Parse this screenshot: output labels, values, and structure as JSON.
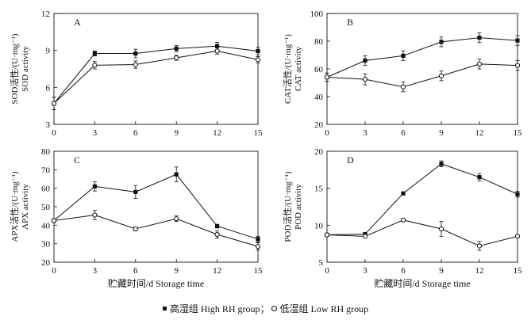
{
  "chart_data": [
    {
      "type": "line",
      "panel_label": "A",
      "ylabel_cn": "SOD活性/(U·mg⁻¹)",
      "ylabel_en": "SOD activity",
      "xlabel": "",
      "x": [
        0,
        3,
        6,
        9,
        12,
        15
      ],
      "xticks": [
        "0",
        "3",
        "6",
        "9",
        "12",
        "15"
      ],
      "ylim": [
        3,
        12
      ],
      "yticks": [
        "3",
        "6",
        "9",
        "12"
      ],
      "series": [
        {
          "name": "High RH group",
          "marker": "square",
          "values": [
            4.7,
            8.75,
            8.75,
            9.15,
            9.35,
            8.95
          ],
          "errors": [
            0.5,
            0.2,
            0.35,
            0.25,
            0.3,
            0.3
          ]
        },
        {
          "name": "Low RH group",
          "marker": "circle",
          "values": [
            4.7,
            7.8,
            7.85,
            8.4,
            8.95,
            8.25
          ],
          "errors": [
            0.5,
            0.3,
            0.3,
            0.2,
            0.25,
            0.25
          ]
        }
      ]
    },
    {
      "type": "line",
      "panel_label": "B",
      "ylabel_cn": "CAT活性/(U·mg⁻¹)",
      "ylabel_en": "CAT activity",
      "xlabel": "",
      "x": [
        0,
        3,
        6,
        9,
        12,
        15
      ],
      "xticks": [
        "0",
        "3",
        "6",
        "9",
        "12",
        "15"
      ],
      "ylim": [
        20,
        100
      ],
      "yticks": [
        "20",
        "40",
        "60",
        "80",
        "100"
      ],
      "series": [
        {
          "name": "High RH group",
          "marker": "square",
          "values": [
            54,
            66,
            69.5,
            79.5,
            82.5,
            80.5
          ],
          "errors": [
            3,
            3.5,
            3.5,
            3.5,
            3.5,
            3.5
          ]
        },
        {
          "name": "Low RH group",
          "marker": "circle",
          "values": [
            54,
            52.5,
            47,
            55,
            63.5,
            62.5
          ],
          "errors": [
            3,
            4,
            3.5,
            3.5,
            3.5,
            3.5
          ]
        }
      ]
    },
    {
      "type": "line",
      "panel_label": "C",
      "ylabel_cn": "APX活性/(U·mg⁻¹)",
      "ylabel_en": "APX activity",
      "xlabel": "贮藏时间/d   Storage time",
      "x": [
        0,
        3,
        6,
        9,
        12,
        15
      ],
      "xticks": [
        "0",
        "3",
        "6",
        "9",
        "12",
        "15"
      ],
      "ylim": [
        20,
        80
      ],
      "yticks": [
        "20",
        "30",
        "40",
        "50",
        "60",
        "70",
        "80"
      ],
      "series": [
        {
          "name": "High RH group",
          "marker": "square",
          "values": [
            42.5,
            61,
            58,
            67.5,
            39.5,
            32.5
          ],
          "errors": [
            1,
            2.5,
            3.5,
            4,
            1,
            1.5
          ]
        },
        {
          "name": "Low RH group",
          "marker": "circle",
          "values": [
            42.5,
            45.5,
            38,
            43.5,
            35,
            28.5
          ],
          "errors": [
            1,
            2.5,
            1,
            1.5,
            2,
            2
          ]
        }
      ]
    },
    {
      "type": "line",
      "panel_label": "D",
      "ylabel_cn": "POD活性/(U·mg⁻¹)",
      "ylabel_en": "POD activity",
      "xlabel": "贮藏时间/d   Storage time",
      "x": [
        0,
        3,
        6,
        9,
        12,
        15
      ],
      "xticks": [
        "0",
        "3",
        "6",
        "9",
        "12",
        "15"
      ],
      "ylim": [
        5,
        20
      ],
      "yticks": [
        "5",
        "10",
        "15",
        "20"
      ],
      "series": [
        {
          "name": "High RH group",
          "marker": "square",
          "values": [
            8.7,
            8.8,
            14.3,
            18.3,
            16.5,
            14.2
          ],
          "errors": [
            0.1,
            0.1,
            0.2,
            0.4,
            0.5,
            0.4
          ]
        },
        {
          "name": "Low RH group",
          "marker": "circle",
          "values": [
            8.7,
            8.5,
            10.7,
            9.5,
            7.2,
            8.5
          ],
          "errors": [
            0.1,
            0.1,
            0.2,
            1,
            0.6,
            0.2
          ]
        }
      ]
    }
  ],
  "legend": {
    "high": "高湿组 High RH group；",
    "low": "低湿组 Low RH group"
  }
}
